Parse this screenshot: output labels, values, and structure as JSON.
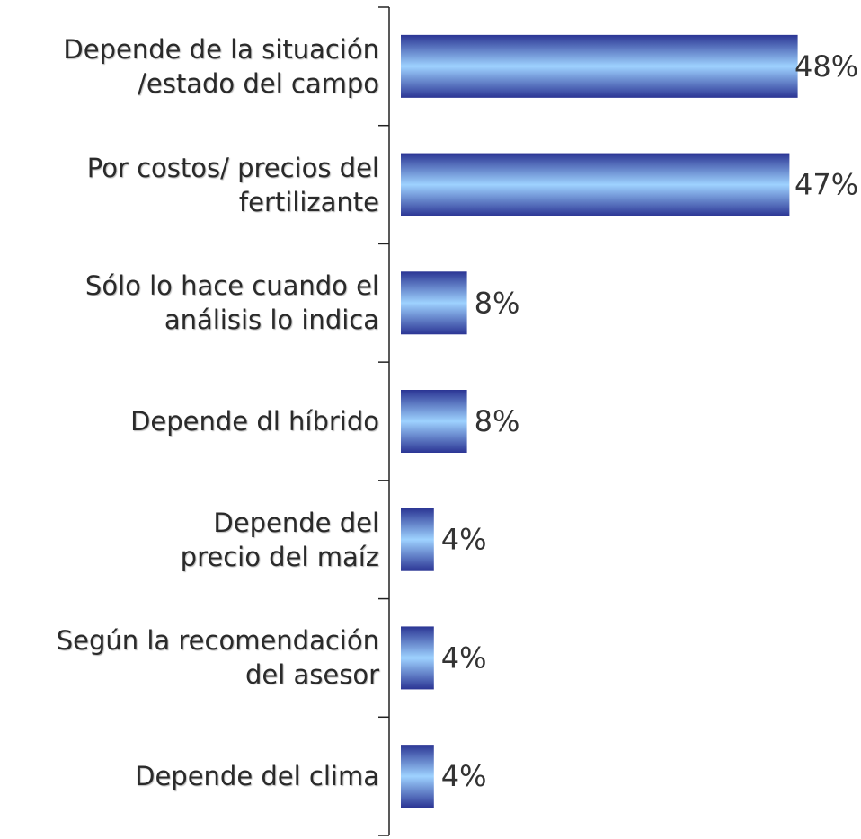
{
  "chart_data": {
    "type": "barh",
    "categories": [
      "Depende de la situación\n/estado del campo",
      "Por costos/ precios del\nfertilizante",
      "Sólo lo hace cuando el\nanálisis lo indica",
      "Depende dl híbrido",
      "Depende del\nprecio del maíz",
      "Según la recomendación\ndel asesor",
      "Depende del clima"
    ],
    "values": [
      48,
      47,
      8,
      8,
      4,
      4,
      4
    ],
    "value_labels": [
      "48%",
      "47%",
      "8%",
      "8%",
      "4%",
      "4%",
      "4%"
    ],
    "xlim": [
      0,
      50
    ],
    "color_dark": "#2b3594",
    "color_light": "#9ed2ff"
  }
}
